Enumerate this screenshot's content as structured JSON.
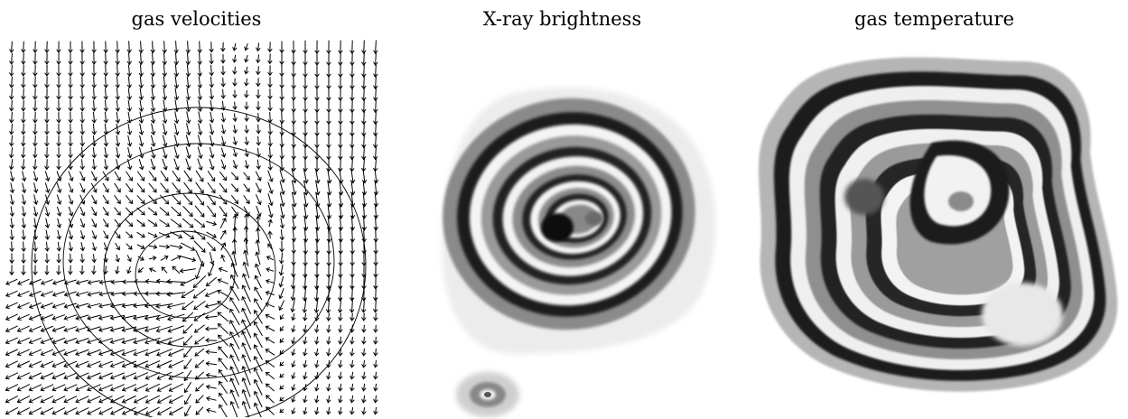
{
  "panels": [
    {
      "id": "velocities",
      "title": "gas velocities"
    },
    {
      "id": "xray",
      "title": "X-ray brightness"
    },
    {
      "id": "temperature",
      "title": "gas temperature"
    }
  ],
  "colors": {
    "background": "#ffffff",
    "ink": "#000000",
    "band_dark": "#1a1a1a",
    "band_light": "#f2f2f2"
  },
  "images": [
    {
      "name": "velocity-field-plot",
      "depicts": "arrow vector field with circular contour lines"
    },
    {
      "name": "xray-brightness-map",
      "depicts": "grayscale banded brightness contours around a dark core"
    },
    {
      "name": "temperature-map",
      "depicts": "grayscale banded temperature contours over an irregular cloud"
    }
  ]
}
